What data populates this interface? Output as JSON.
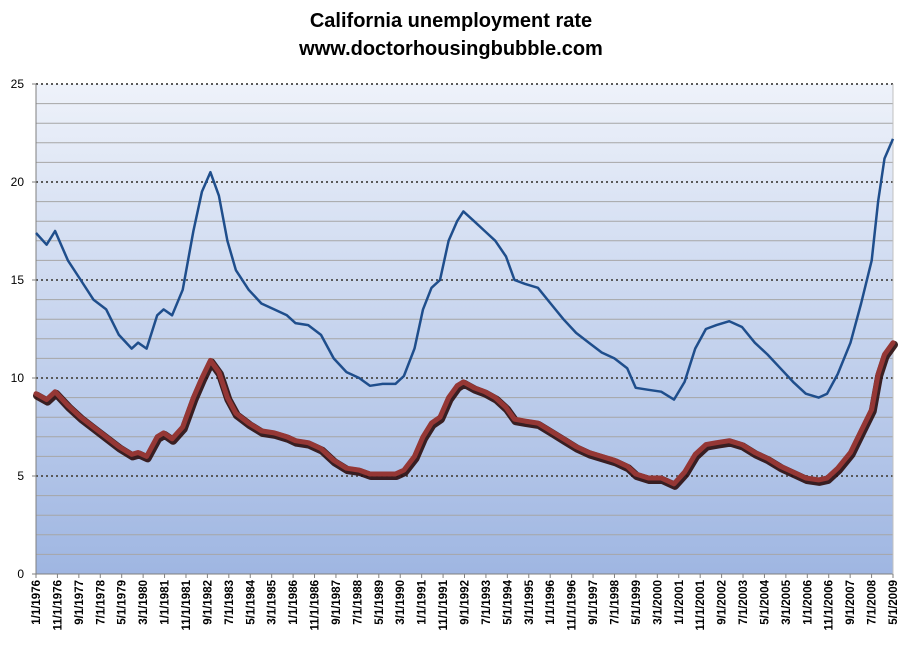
{
  "chart_data": {
    "type": "line",
    "title": "California unemployment rate",
    "subtitle": "www.doctorhousingbubble.com",
    "xlabel": "",
    "ylabel": "",
    "ylim": [
      0,
      25
    ],
    "yticks": [
      0,
      5,
      10,
      15,
      20,
      25
    ],
    "grid": "horizontal",
    "legend": "none",
    "xlim": [
      "1976-01",
      "2009-08"
    ],
    "x_tick_labels": [
      "1/1/1976",
      "11/1/1976",
      "9/1/1977",
      "7/1/1978",
      "5/1/1979",
      "3/1/1980",
      "1/1/1981",
      "11/1/1981",
      "9/1/1982",
      "7/1/1983",
      "5/1/1984",
      "3/1/1985",
      "1/1/1986",
      "11/1/1986",
      "9/1/1987",
      "7/1/1988",
      "5/1/1989",
      "3/1/1990",
      "1/1/1991",
      "11/1/1991",
      "9/1/1992",
      "7/1/1993",
      "5/1/1994",
      "3/1/1995",
      "1/1/1996",
      "11/1/1996",
      "9/1/1997",
      "7/1/1998",
      "5/1/1999",
      "3/1/2000",
      "1/1/2001",
      "11/1/2001",
      "9/1/2002",
      "7/1/2003",
      "5/1/2004",
      "3/1/2005",
      "1/1/2006",
      "11/1/2006",
      "9/1/2007",
      "7/1/2008",
      "5/1/2009"
    ],
    "series": [
      {
        "color": "#1f4e8c",
        "points": [
          [
            "1976-01",
            17.4
          ],
          [
            "1976-06",
            16.8
          ],
          [
            "1976-10",
            17.5
          ],
          [
            "1977-04",
            16.0
          ],
          [
            "1977-10",
            15.0
          ],
          [
            "1978-04",
            14.0
          ],
          [
            "1978-10",
            13.5
          ],
          [
            "1979-04",
            12.2
          ],
          [
            "1979-10",
            11.5
          ],
          [
            "1980-01",
            11.8
          ],
          [
            "1980-05",
            11.5
          ],
          [
            "1980-10",
            13.2
          ],
          [
            "1981-01",
            13.5
          ],
          [
            "1981-05",
            13.2
          ],
          [
            "1981-10",
            14.5
          ],
          [
            "1982-03",
            17.5
          ],
          [
            "1982-07",
            19.5
          ],
          [
            "1982-11",
            20.5
          ],
          [
            "1983-03",
            19.3
          ],
          [
            "1983-07",
            17.0
          ],
          [
            "1983-11",
            15.5
          ],
          [
            "1984-05",
            14.5
          ],
          [
            "1984-11",
            13.8
          ],
          [
            "1985-05",
            13.5
          ],
          [
            "1985-11",
            13.2
          ],
          [
            "1986-03",
            12.8
          ],
          [
            "1986-09",
            12.7
          ],
          [
            "1987-03",
            12.2
          ],
          [
            "1987-09",
            11.0
          ],
          [
            "1988-03",
            10.3
          ],
          [
            "1988-09",
            10.0
          ],
          [
            "1989-02",
            9.6
          ],
          [
            "1989-08",
            9.7
          ],
          [
            "1990-02",
            9.7
          ],
          [
            "1990-06",
            10.1
          ],
          [
            "1990-11",
            11.5
          ],
          [
            "1991-03",
            13.5
          ],
          [
            "1991-07",
            14.6
          ],
          [
            "1991-11",
            15.0
          ],
          [
            "1992-03",
            17.0
          ],
          [
            "1992-07",
            18.0
          ],
          [
            "1992-10",
            18.5
          ],
          [
            "1993-03",
            18.0
          ],
          [
            "1993-08",
            17.5
          ],
          [
            "1994-01",
            17.0
          ],
          [
            "1994-06",
            16.2
          ],
          [
            "1994-10",
            15.0
          ],
          [
            "1995-03",
            14.8
          ],
          [
            "1995-09",
            14.6
          ],
          [
            "1996-03",
            13.8
          ],
          [
            "1996-09",
            13.0
          ],
          [
            "1997-03",
            12.3
          ],
          [
            "1997-09",
            11.8
          ],
          [
            "1998-03",
            11.3
          ],
          [
            "1998-09",
            11.0
          ],
          [
            "1999-03",
            10.5
          ],
          [
            "1999-07",
            9.5
          ],
          [
            "2000-01",
            9.4
          ],
          [
            "2000-07",
            9.3
          ],
          [
            "2001-01",
            8.9
          ],
          [
            "2001-06",
            9.8
          ],
          [
            "2001-11",
            11.5
          ],
          [
            "2002-04",
            12.5
          ],
          [
            "2002-09",
            12.7
          ],
          [
            "2003-03",
            12.9
          ],
          [
            "2003-09",
            12.6
          ],
          [
            "2004-03",
            11.8
          ],
          [
            "2004-09",
            11.2
          ],
          [
            "2005-03",
            10.5
          ],
          [
            "2005-09",
            9.8
          ],
          [
            "2006-03",
            9.2
          ],
          [
            "2006-09",
            9.0
          ],
          [
            "2007-01",
            9.2
          ],
          [
            "2007-06",
            10.2
          ],
          [
            "2007-12",
            11.8
          ],
          [
            "2008-05",
            13.8
          ],
          [
            "2008-10",
            16.0
          ],
          [
            "2009-01",
            19.0
          ],
          [
            "2009-04",
            21.2
          ],
          [
            "2009-08",
            22.2
          ]
        ]
      },
      {
        "color": "#953735",
        "points": [
          [
            "1976-01",
            9.2
          ],
          [
            "1976-06",
            8.9
          ],
          [
            "1976-10",
            9.3
          ],
          [
            "1977-04",
            8.6
          ],
          [
            "1977-10",
            8.0
          ],
          [
            "1978-04",
            7.5
          ],
          [
            "1978-10",
            7.0
          ],
          [
            "1979-04",
            6.5
          ],
          [
            "1979-10",
            6.1
          ],
          [
            "1980-01",
            6.2
          ],
          [
            "1980-05",
            6.0
          ],
          [
            "1980-10",
            7.0
          ],
          [
            "1981-01",
            7.2
          ],
          [
            "1981-05",
            6.9
          ],
          [
            "1981-10",
            7.5
          ],
          [
            "1982-03",
            9.0
          ],
          [
            "1982-07",
            10.0
          ],
          [
            "1982-11",
            10.9
          ],
          [
            "1983-03",
            10.3
          ],
          [
            "1983-07",
            9.0
          ],
          [
            "1983-11",
            8.2
          ],
          [
            "1984-05",
            7.7
          ],
          [
            "1984-11",
            7.3
          ],
          [
            "1985-05",
            7.2
          ],
          [
            "1985-11",
            7.0
          ],
          [
            "1986-03",
            6.8
          ],
          [
            "1986-09",
            6.7
          ],
          [
            "1987-03",
            6.4
          ],
          [
            "1987-09",
            5.8
          ],
          [
            "1988-03",
            5.4
          ],
          [
            "1988-09",
            5.3
          ],
          [
            "1989-02",
            5.1
          ],
          [
            "1989-08",
            5.1
          ],
          [
            "1990-02",
            5.1
          ],
          [
            "1990-06",
            5.3
          ],
          [
            "1990-11",
            6.0
          ],
          [
            "1991-03",
            7.0
          ],
          [
            "1991-07",
            7.7
          ],
          [
            "1991-11",
            8.0
          ],
          [
            "1992-03",
            9.0
          ],
          [
            "1992-07",
            9.6
          ],
          [
            "1992-10",
            9.8
          ],
          [
            "1993-03",
            9.5
          ],
          [
            "1993-08",
            9.3
          ],
          [
            "1994-01",
            9.0
          ],
          [
            "1994-06",
            8.5
          ],
          [
            "1994-10",
            7.9
          ],
          [
            "1995-03",
            7.8
          ],
          [
            "1995-09",
            7.7
          ],
          [
            "1996-03",
            7.3
          ],
          [
            "1996-09",
            6.9
          ],
          [
            "1997-03",
            6.5
          ],
          [
            "1997-09",
            6.2
          ],
          [
            "1998-03",
            6.0
          ],
          [
            "1998-09",
            5.8
          ],
          [
            "1999-03",
            5.5
          ],
          [
            "1999-07",
            5.1
          ],
          [
            "2000-01",
            4.9
          ],
          [
            "2000-07",
            4.9
          ],
          [
            "2001-01",
            4.6
          ],
          [
            "2001-06",
            5.2
          ],
          [
            "2001-11",
            6.1
          ],
          [
            "2002-04",
            6.6
          ],
          [
            "2002-09",
            6.7
          ],
          [
            "2003-03",
            6.8
          ],
          [
            "2003-09",
            6.6
          ],
          [
            "2004-03",
            6.2
          ],
          [
            "2004-09",
            5.9
          ],
          [
            "2005-03",
            5.5
          ],
          [
            "2005-09",
            5.2
          ],
          [
            "2006-03",
            4.9
          ],
          [
            "2006-09",
            4.8
          ],
          [
            "2007-01",
            4.9
          ],
          [
            "2007-06",
            5.4
          ],
          [
            "2007-12",
            6.2
          ],
          [
            "2008-05",
            7.3
          ],
          [
            "2008-10",
            8.4
          ],
          [
            "2009-01",
            10.2
          ],
          [
            "2009-04",
            11.2
          ],
          [
            "2009-08",
            11.8
          ]
        ]
      }
    ],
    "colors": {
      "plot_bg_top": "#eef2fa",
      "plot_bg_bottom": "#9fb6e2",
      "grid": "#a6a6a6",
      "major_grid": "#595959"
    }
  }
}
